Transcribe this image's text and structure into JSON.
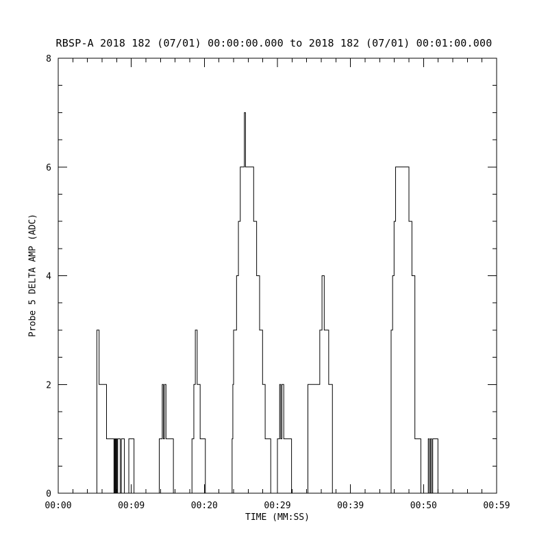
{
  "window": {
    "background": "#ffffff",
    "foreground": "#000000"
  },
  "chart_data": {
    "type": "line",
    "line_style": "step",
    "title": "RBSP-A 2018 182 (07/01) 00:00:00.000 to 2018 182 (07/01) 00:01:00.000",
    "xlabel": "TIME (MM:SS)",
    "ylabel": "Probe 5 DELTA AMP (ADC)",
    "xlim": [
      0,
      59
    ],
    "ylim": [
      0,
      8
    ],
    "x_tick_labels": [
      "00:00",
      "00:09",
      "00:20",
      "00:29",
      "00:39",
      "00:50",
      "00:59"
    ],
    "y_ticks": [
      0,
      2,
      4,
      6,
      8
    ],
    "y_tick_labels": [
      "0",
      "2",
      "4",
      "6",
      "8"
    ],
    "grid": false,
    "legend": "none",
    "line_color": "#000000",
    "series": [
      {
        "name": "Probe 5 DELTA AMP (ADC)",
        "points": [
          [
            0,
            0
          ],
          [
            5.2,
            3
          ],
          [
            5.5,
            2
          ],
          [
            6.5,
            1
          ],
          [
            7.5,
            0
          ],
          [
            7.6,
            1
          ],
          [
            7.7,
            0
          ],
          [
            7.8,
            1
          ],
          [
            7.9,
            0
          ],
          [
            8.0,
            1
          ],
          [
            8.35,
            0
          ],
          [
            8.5,
            1
          ],
          [
            8.9,
            0
          ],
          [
            9.5,
            1
          ],
          [
            10.2,
            0
          ],
          [
            13.6,
            1
          ],
          [
            14.0,
            2
          ],
          [
            14.15,
            1
          ],
          [
            14.3,
            2
          ],
          [
            14.5,
            1
          ],
          [
            15.5,
            0
          ],
          [
            18.0,
            1
          ],
          [
            18.25,
            2
          ],
          [
            18.45,
            3
          ],
          [
            18.7,
            2
          ],
          [
            19.1,
            1
          ],
          [
            19.8,
            0
          ],
          [
            23.4,
            1
          ],
          [
            23.5,
            2
          ],
          [
            23.6,
            3
          ],
          [
            24.0,
            4
          ],
          [
            24.25,
            5
          ],
          [
            24.5,
            6
          ],
          [
            25.05,
            7
          ],
          [
            25.2,
            6
          ],
          [
            26.3,
            5
          ],
          [
            26.7,
            4
          ],
          [
            27.1,
            3
          ],
          [
            27.5,
            2
          ],
          [
            27.85,
            1
          ],
          [
            28.6,
            0
          ],
          [
            29.5,
            1
          ],
          [
            29.8,
            2
          ],
          [
            29.95,
            1
          ],
          [
            30.1,
            2
          ],
          [
            30.35,
            1
          ],
          [
            31.4,
            0
          ],
          [
            33.6,
            2
          ],
          [
            35.2,
            3
          ],
          [
            35.5,
            4
          ],
          [
            35.8,
            3
          ],
          [
            36.4,
            2
          ],
          [
            36.9,
            0
          ],
          [
            44.8,
            3
          ],
          [
            45.0,
            4
          ],
          [
            45.2,
            5
          ],
          [
            45.4,
            6
          ],
          [
            47.2,
            5
          ],
          [
            47.6,
            4
          ],
          [
            48.0,
            1
          ],
          [
            48.8,
            0
          ],
          [
            49.8,
            1
          ],
          [
            49.95,
            0
          ],
          [
            50.1,
            1
          ],
          [
            50.25,
            0
          ],
          [
            50.4,
            1
          ],
          [
            51.1,
            0
          ],
          [
            59,
            0
          ]
        ]
      }
    ]
  }
}
